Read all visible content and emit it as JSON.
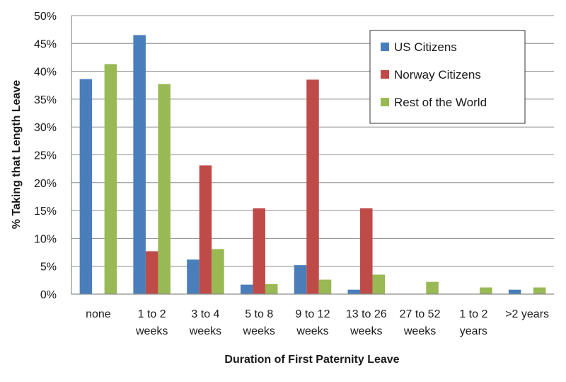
{
  "chart_data": {
    "type": "bar",
    "title": "",
    "xlabel": "Duration of First Paternity Leave",
    "ylabel": "% Taking that Length Leave",
    "ylim": [
      0,
      50
    ],
    "yticks": [
      "0%",
      "5%",
      "10%",
      "15%",
      "20%",
      "25%",
      "30%",
      "35%",
      "40%",
      "45%",
      "50%"
    ],
    "grid": true,
    "legend_position": "top-right",
    "categories": [
      [
        "none"
      ],
      [
        "1 to 2",
        "weeks"
      ],
      [
        "3 to 4",
        "weeks"
      ],
      [
        "5 to 8",
        "weeks"
      ],
      [
        "9 to 12",
        "weeks"
      ],
      [
        "13 to 26",
        "weeks"
      ],
      [
        "27 to 52",
        "weeks"
      ],
      [
        "1 to 2",
        "years"
      ],
      [
        ">2 years"
      ]
    ],
    "series": [
      {
        "name": "US Citizens",
        "color": "#4a7ebb",
        "values": [
          38.6,
          46.5,
          6.2,
          1.7,
          5.2,
          0.8,
          0,
          0,
          0.8
        ]
      },
      {
        "name": "Norway Citizens",
        "color": "#be4b48",
        "values": [
          0,
          7.7,
          23.1,
          15.4,
          38.5,
          15.4,
          0,
          0,
          0
        ]
      },
      {
        "name": "Rest of the World",
        "color": "#98b954",
        "values": [
          41.3,
          37.7,
          8.1,
          1.8,
          2.6,
          3.5,
          2.2,
          1.2,
          1.2
        ]
      }
    ]
  }
}
